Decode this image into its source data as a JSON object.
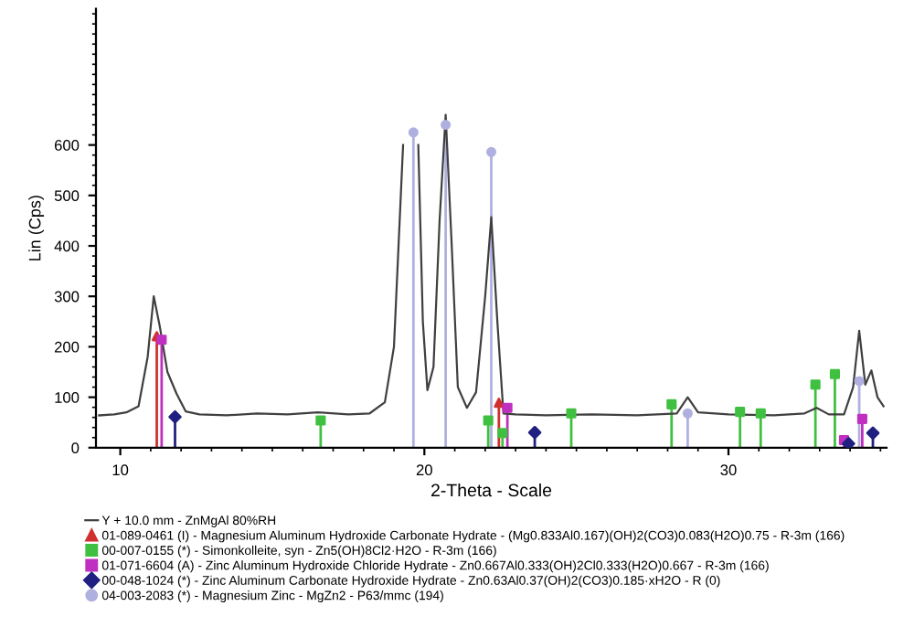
{
  "chart_data": {
    "type": "line",
    "xlabel": "2-Theta - Scale",
    "ylabel": "Lin (Cps)",
    "xlim": [
      9.2,
      35.2
    ],
    "ylim": [
      0,
      870
    ],
    "xticks": [
      10,
      20,
      30
    ],
    "yticks": [
      0,
      100,
      200,
      300,
      400,
      500,
      600
    ],
    "grid": false,
    "legend": "bottom",
    "series": [
      {
        "name": "Y + 10.0 mm - ZnMgAl 80%RH",
        "color": "#404040",
        "marker": "none",
        "x": [
          9.3,
          9.8,
          10.2,
          10.6,
          10.9,
          11.1,
          11.3,
          11.55,
          11.85,
          12.15,
          12.6,
          13.5,
          14.5,
          15.5,
          16.5,
          17.5,
          18.2,
          18.7,
          19.0,
          19.3,
          19.5,
          19.65,
          19.8,
          19.95,
          20.1,
          20.3,
          20.5,
          20.7,
          20.9,
          21.1,
          21.4,
          21.7,
          22.0,
          22.2,
          22.4,
          22.6,
          23.0,
          24.0,
          25.5,
          27.0,
          28.3,
          28.66,
          29.0,
          30.0,
          31.5,
          32.5,
          32.9,
          33.3,
          33.8,
          34.1,
          34.3,
          34.5,
          34.7,
          34.9,
          35.1
        ],
        "values": [
          64,
          66,
          70,
          82,
          180,
          300,
          240,
          150,
          107,
          72,
          66,
          64,
          68,
          66,
          70,
          66,
          68,
          90,
          200,
          600,
          null,
          null,
          600,
          250,
          114,
          160,
          450,
          660,
          400,
          120,
          79,
          110,
          300,
          457,
          250,
          68,
          66,
          64,
          66,
          64,
          68,
          100,
          70,
          66,
          64,
          68,
          79,
          66,
          66,
          120,
          232,
          125,
          153,
          100,
          82
        ]
      },
      {
        "name": "01-089-0461 (I) - Magnesium Aluminum Hydroxide Carbonate Hydrate - (Mg0.833Al0.167)(OH)2(CO3)0.083(H2O)0.75 - R-3m (166)",
        "type": "lollipop",
        "color": "#d03030",
        "marker": "triangle",
        "x": [
          11.2,
          22.45
        ],
        "values": [
          221,
          89
        ]
      },
      {
        "name": "00-007-0155 (*) - Simonkolleite, syn - Zn5(OH)8Cl2·H2O - R-3m (166)",
        "type": "lollipop",
        "color": "#40c040",
        "marker": "square",
        "x": [
          16.59,
          22.1,
          22.57,
          24.83,
          28.13,
          30.38,
          31.06,
          32.86,
          33.5
        ],
        "values": [
          54,
          54,
          29,
          68,
          86,
          71,
          68,
          125,
          146
        ]
      },
      {
        "name": "01-071-6604 (A) - Zinc Aluminum Hydroxide Chloride Hydrate - Zn0.667Al0.333(OH)2Cl0.333(H2O)0.667 - R-3m (166)",
        "type": "lollipop",
        "color": "#c030c0",
        "marker": "square",
        "x": [
          11.36,
          22.73,
          33.8,
          34.4
        ],
        "values": [
          214,
          79,
          15,
          57
        ]
      },
      {
        "name": "00-048-1024 (*) - Zinc Aluminum Carbonate Hydroxide Hydrate - Zn0.63Al0.37(OH)2(CO3)0.185·xH2O - R (0)",
        "type": "lollipop",
        "color": "#202080",
        "marker": "diamond",
        "x": [
          11.8,
          23.63,
          33.95,
          34.75
        ],
        "values": [
          61,
          30,
          8,
          29
        ]
      },
      {
        "name": "04-003-2083 (*) - Magnesium Zinc - MgZn2 - P63/mmc (194)",
        "type": "lollipop",
        "color": "#b0b0e0",
        "marker": "circle",
        "x": [
          19.64,
          20.7,
          22.2,
          28.66,
          34.3
        ],
        "values": [
          625,
          640,
          586,
          68,
          132
        ]
      }
    ]
  }
}
